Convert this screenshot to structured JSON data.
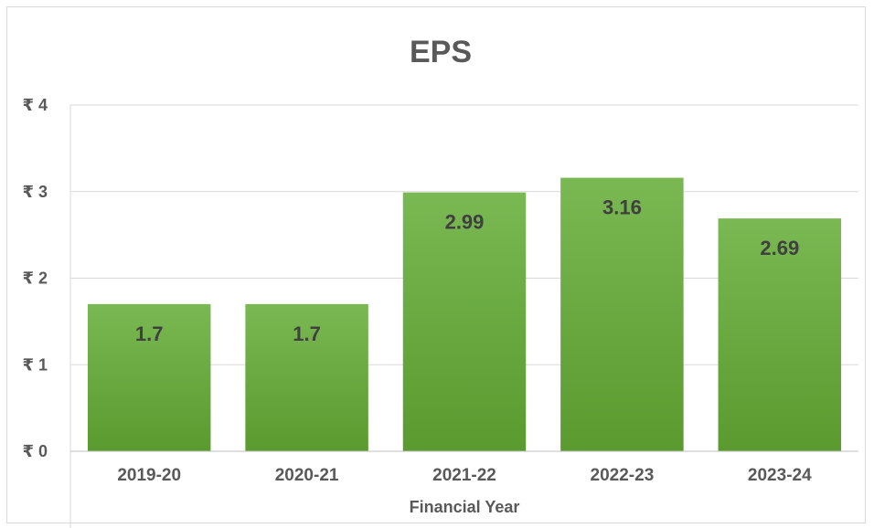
{
  "chart_data": {
    "type": "bar",
    "title": "EPS",
    "xlabel": "Financial Year",
    "ylabel": "",
    "categories": [
      "2019-20",
      "2020-21",
      "2021-22",
      "2022-23",
      "2023-24"
    ],
    "values": [
      1.7,
      1.7,
      2.99,
      3.16,
      2.69
    ],
    "data_labels": [
      "1.7",
      "1.7",
      "2.99",
      "3.16",
      "2.69"
    ],
    "y_ticks": [
      0,
      1,
      2,
      3,
      4
    ],
    "y_tick_labels": [
      "₹ 0",
      "₹ 1",
      "₹ 2",
      "₹ 3",
      "₹ 4"
    ],
    "ylim": [
      0,
      4
    ],
    "grid": true,
    "legend": "none",
    "bar_color_top": "#7ab853",
    "bar_color_bottom": "#5a9a2e"
  }
}
